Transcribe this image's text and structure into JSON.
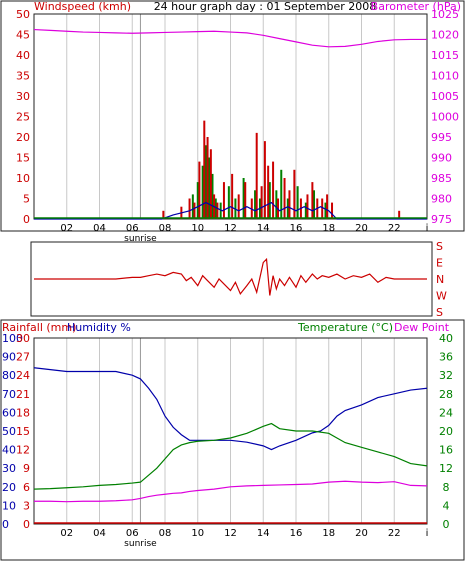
{
  "chart_data": [
    {
      "type": "line",
      "title": "24 hour graph day : 01 September 2008",
      "left_axis_label": "Windspeed (kmh)",
      "right_axis_label": "Barometer (hPa)",
      "x_ticks": [
        "02",
        "04",
        "06",
        "08",
        "10",
        "12",
        "14",
        "16",
        "18",
        "20",
        "22",
        "i"
      ],
      "x_range": [
        0,
        24
      ],
      "sunrise_label": "sunrise",
      "sunrise_hour": 6.5,
      "left_ticks": [
        "0",
        "5",
        "10",
        "15",
        "20",
        "25",
        "30",
        "35",
        "40",
        "45",
        "50"
      ],
      "left_range": [
        0,
        50
      ],
      "right_ticks": [
        "975",
        "980",
        "985",
        "990",
        "995",
        "1000",
        "1005",
        "1010",
        "1015",
        "1020",
        "1025"
      ],
      "right_range": [
        975,
        1025
      ],
      "grid": true,
      "colors": {
        "windspeed": "#cc0000",
        "gust": "#008000",
        "average": "#0000aa",
        "barometer": "#dd00dd"
      },
      "barometer": {
        "x": [
          0,
          1,
          2,
          3,
          4,
          5,
          6,
          7,
          8,
          9,
          10,
          11,
          12,
          13,
          14,
          15,
          16,
          17,
          18,
          19,
          20,
          21,
          22,
          23,
          24
        ],
        "y": [
          1021.2,
          1021.0,
          1020.8,
          1020.6,
          1020.5,
          1020.4,
          1020.3,
          1020.4,
          1020.5,
          1020.6,
          1020.7,
          1020.8,
          1020.6,
          1020.4,
          1019.8,
          1019.0,
          1018.2,
          1017.4,
          1017.0,
          1017.1,
          1017.6,
          1018.3,
          1018.7,
          1018.8,
          1018.8
        ]
      },
      "windspeed_bars": {
        "x": [
          7.9,
          9.0,
          9.5,
          9.8,
          10.1,
          10.4,
          10.6,
          10.8,
          11.0,
          11.2,
          11.6,
          12.1,
          12.5,
          12.9,
          13.3,
          13.6,
          13.9,
          14.1,
          14.3,
          14.6,
          14.9,
          15.3,
          15.6,
          15.9,
          16.3,
          16.7,
          17.0,
          17.3,
          17.6,
          17.9,
          18.2,
          22.3
        ],
        "y": [
          2,
          3,
          5,
          4,
          14,
          24,
          20,
          17,
          6,
          4,
          9,
          11,
          6,
          9,
          5,
          21,
          8,
          19,
          13,
          14,
          5,
          10,
          7,
          12,
          5,
          6,
          9,
          5,
          5,
          6,
          4,
          2
        ]
      },
      "gust_bars": {
        "x": [
          9.7,
          10.0,
          10.3,
          10.5,
          10.7,
          10.9,
          11.1,
          11.4,
          11.9,
          12.3,
          12.8,
          13.5,
          13.8,
          14.4,
          14.8,
          15.1,
          15.5,
          16.1,
          16.6,
          17.1,
          17.8
        ],
        "y": [
          6,
          9,
          13,
          18,
          15,
          11,
          5,
          4,
          8,
          5,
          10,
          7,
          5,
          9,
          7,
          12,
          5,
          8,
          4,
          7,
          4
        ]
      },
      "average": {
        "x": [
          0,
          7.8,
          8.5,
          9.5,
          10.0,
          10.5,
          11.0,
          11.5,
          12.0,
          12.5,
          13.0,
          13.5,
          14.0,
          14.5,
          15.0,
          15.5,
          16.0,
          16.5,
          17.0,
          17.5,
          18.0,
          18.5,
          24
        ],
        "y": [
          0,
          0,
          1,
          2,
          3,
          4,
          3,
          2,
          3,
          2,
          3,
          2,
          3,
          4,
          2,
          3,
          2,
          3,
          2,
          3,
          2,
          0,
          0
        ]
      }
    },
    {
      "type": "line",
      "right_labels": [
        "S",
        "E",
        "N",
        "W",
        "S"
      ],
      "range": [
        0,
        4
      ],
      "color": "#cc0000",
      "wind_direction": {
        "x": [
          0,
          1,
          2,
          3,
          4,
          5,
          6,
          6.5,
          7,
          7.5,
          8,
          8.5,
          9,
          9.3,
          9.6,
          10,
          10.3,
          10.6,
          11,
          11.3,
          11.6,
          12,
          12.3,
          12.6,
          13,
          13.3,
          13.6,
          14,
          14.2,
          14.4,
          14.6,
          14.8,
          15,
          15.3,
          15.6,
          16,
          16.3,
          16.6,
          17,
          17.3,
          17.6,
          18,
          18.5,
          19,
          19.5,
          20,
          20.5,
          21,
          21.5,
          22,
          23,
          24
        ],
        "y": [
          2.0,
          2.0,
          2.0,
          2.0,
          2.0,
          2.0,
          2.1,
          2.1,
          2.2,
          2.3,
          2.2,
          2.4,
          2.3,
          1.9,
          2.1,
          1.6,
          2.2,
          1.9,
          1.5,
          2.0,
          1.7,
          1.3,
          1.8,
          1.1,
          1.6,
          2.0,
          1.2,
          3.0,
          3.2,
          1.0,
          2.2,
          1.4,
          2.0,
          1.6,
          2.1,
          1.5,
          2.2,
          1.8,
          2.3,
          2.0,
          2.2,
          2.1,
          2.3,
          2.0,
          2.2,
          2.1,
          2.3,
          1.8,
          2.1,
          2.0,
          2.0,
          2.0
        ]
      }
    },
    {
      "type": "line",
      "left_axis_label_a": "Rainfall (mm)",
      "left_axis_label_b": "Humidity %",
      "right_axis_label_a": "Temperature (°C)",
      "right_axis_label_b": "Dew Point",
      "x_ticks": [
        "02",
        "04",
        "06",
        "08",
        "10",
        "12",
        "14",
        "16",
        "18",
        "20",
        "22",
        "i"
      ],
      "sunrise_label": "sunrise",
      "humidity_ticks": [
        "0",
        "10",
        "20",
        "30",
        "40",
        "50",
        "60",
        "70",
        "80",
        "90",
        "100"
      ],
      "humidity_range": [
        0,
        100
      ],
      "rain_ticks": [
        "0",
        "3",
        "6",
        "9",
        "12",
        "15",
        "18",
        "21",
        "24",
        "27",
        "30"
      ],
      "temp_ticks": [
        "0",
        "4",
        "8",
        "12",
        "16",
        "20",
        "24",
        "28",
        "32",
        "36",
        "40"
      ],
      "temp_range": [
        0,
        40
      ],
      "colors": {
        "humidity": "#0000aa",
        "temperature": "#008000",
        "dew_point": "#dd00dd",
        "rainfall": "#cc0000"
      },
      "humidity": {
        "x": [
          0,
          1,
          2,
          3,
          4,
          5,
          6,
          6.5,
          7,
          7.5,
          8,
          8.5,
          9,
          9.5,
          10,
          11,
          12,
          13,
          14,
          14.5,
          15,
          16,
          17,
          17.5,
          18,
          18.5,
          19,
          20,
          21,
          22,
          23,
          24
        ],
        "y": [
          84,
          83,
          82,
          82,
          82,
          82,
          80,
          78,
          73,
          67,
          58,
          52,
          48,
          45,
          45,
          45,
          45,
          44,
          42,
          40,
          42,
          45,
          49,
          50,
          53,
          58,
          61,
          64,
          68,
          70,
          72,
          73
        ]
      },
      "temperature": {
        "x": [
          0,
          1,
          2,
          3,
          4,
          5,
          6,
          6.5,
          7,
          7.5,
          8,
          8.5,
          9,
          9.5,
          10,
          11,
          12,
          13,
          14,
          14.5,
          15,
          16,
          17,
          18,
          18.5,
          19,
          20,
          21,
          22,
          23,
          24
        ],
        "y": [
          7.5,
          7.6,
          7.8,
          8.0,
          8.3,
          8.5,
          8.8,
          9.0,
          10.5,
          12,
          14,
          16,
          17,
          17.5,
          17.8,
          18,
          18.5,
          19.5,
          21,
          21.6,
          20.5,
          20,
          20,
          19.5,
          18.5,
          17.5,
          16.5,
          15.5,
          14.5,
          13,
          12.5
        ]
      },
      "dew_point": {
        "x": [
          0,
          1,
          2,
          3,
          4,
          5,
          6,
          6.5,
          7,
          7.5,
          8,
          8.5,
          9,
          9.5,
          10,
          11,
          12,
          13,
          14,
          15,
          16,
          17,
          18,
          19,
          20,
          21,
          22,
          23,
          24
        ],
        "y": [
          4.9,
          4.9,
          4.8,
          4.9,
          4.9,
          5.0,
          5.2,
          5.5,
          5.9,
          6.2,
          6.4,
          6.6,
          6.7,
          7.0,
          7.2,
          7.5,
          8.0,
          8.2,
          8.3,
          8.4,
          8.5,
          8.6,
          9.0,
          9.2,
          9.0,
          8.9,
          9.1,
          8.3,
          8.2
        ]
      },
      "rainfall": {
        "x": [
          0,
          24
        ],
        "y": [
          0,
          0
        ]
      }
    }
  ]
}
